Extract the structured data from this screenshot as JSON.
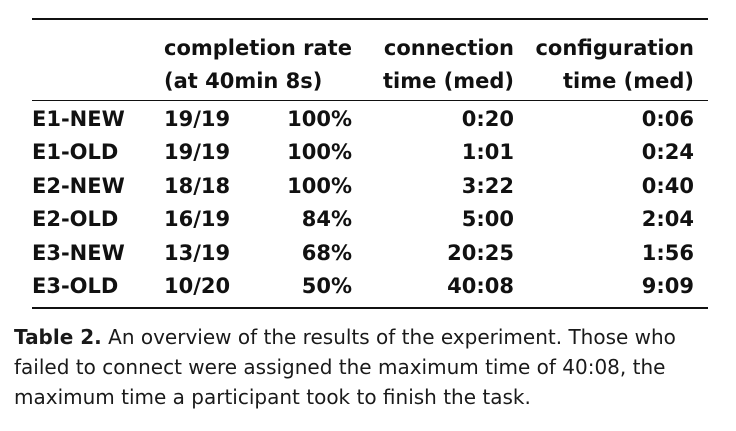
{
  "table": {
    "header": {
      "completion_rate_line1": "completion rate",
      "completion_rate_line2": "(at 40min 8s)",
      "connection_line1": "connection",
      "connection_line2": "time (med)",
      "configuration_line1": "configuration",
      "configuration_line2": "time (med)"
    },
    "rows": [
      {
        "label": "E1-NEW",
        "fraction": "19/19",
        "percent": "100%",
        "connection": "0:20",
        "configuration": "0:06"
      },
      {
        "label": "E1-OLD",
        "fraction": "19/19",
        "percent": "100%",
        "connection": "1:01",
        "configuration": "0:24"
      },
      {
        "label": "E2-NEW",
        "fraction": "18/18",
        "percent": "100%",
        "connection": "3:22",
        "configuration": "0:40"
      },
      {
        "label": "E2-OLD",
        "fraction": "16/19",
        "percent": "84%",
        "connection": "5:00",
        "configuration": "2:04"
      },
      {
        "label": "E3-NEW",
        "fraction": "13/19",
        "percent": "68%",
        "connection": "20:25",
        "configuration": "1:56"
      },
      {
        "label": "E3-OLD",
        "fraction": "10/20",
        "percent": "50%",
        "connection": "40:08",
        "configuration": "9:09"
      }
    ]
  },
  "caption": {
    "label": "Table 2.",
    "text": " An overview of the results of the experiment. Those who failed to connect were assigned the maximum time of 40:08, the maximum time a participant took to finish the task."
  }
}
